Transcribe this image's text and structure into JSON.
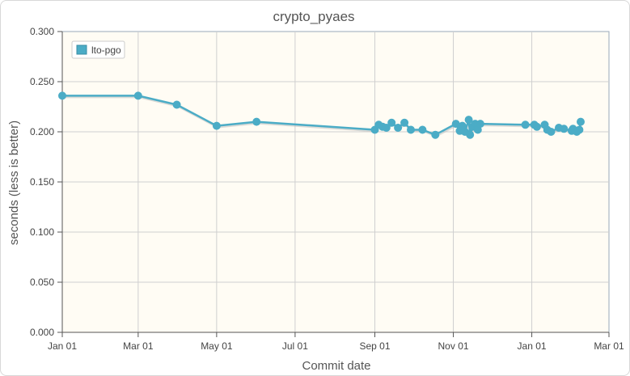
{
  "chart_data": {
    "type": "line",
    "title": "crypto_pyaes",
    "xlabel": "Commit date",
    "ylabel": "seconds (less is better)",
    "x_ticks": [
      "Jan 01",
      "Mar 01",
      "May 01",
      "Jul 01",
      "Sep 01",
      "Nov 01",
      "Jan 01",
      "Mar 01"
    ],
    "y_ticks": [
      "0.000",
      "0.050",
      "0.100",
      "0.150",
      "0.200",
      "0.250",
      "0.300"
    ],
    "ylim": [
      0,
      0.3
    ],
    "grid": true,
    "legend_position": "top-left",
    "series": [
      {
        "name": "lto-pgo",
        "color": "#4bacc6",
        "points": [
          {
            "x": "2019-01-01",
            "y": 0.236
          },
          {
            "x": "2019-03-01",
            "y": 0.236
          },
          {
            "x": "2019-03-31",
            "y": 0.227
          },
          {
            "x": "2019-05-01",
            "y": 0.206
          },
          {
            "x": "2019-06-01",
            "y": 0.21
          },
          {
            "x": "2019-09-01",
            "y": 0.202
          },
          {
            "x": "2019-09-04",
            "y": 0.207
          },
          {
            "x": "2019-09-07",
            "y": 0.205
          },
          {
            "x": "2019-09-10",
            "y": 0.204
          },
          {
            "x": "2019-09-14",
            "y": 0.209
          },
          {
            "x": "2019-09-19",
            "y": 0.204
          },
          {
            "x": "2019-09-24",
            "y": 0.209
          },
          {
            "x": "2019-09-29",
            "y": 0.202
          },
          {
            "x": "2019-10-08",
            "y": 0.202
          },
          {
            "x": "2019-10-18",
            "y": 0.197
          },
          {
            "x": "2019-11-03",
            "y": 0.208
          },
          {
            "x": "2019-11-06",
            "y": 0.201
          },
          {
            "x": "2019-11-08",
            "y": 0.206
          },
          {
            "x": "2019-11-10",
            "y": 0.2
          },
          {
            "x": "2019-11-13",
            "y": 0.212
          },
          {
            "x": "2019-11-14",
            "y": 0.197
          },
          {
            "x": "2019-11-16",
            "y": 0.205
          },
          {
            "x": "2019-11-18",
            "y": 0.208
          },
          {
            "x": "2019-11-20",
            "y": 0.202
          },
          {
            "x": "2019-11-22",
            "y": 0.208
          },
          {
            "x": "2019-12-27",
            "y": 0.207
          },
          {
            "x": "2020-01-03",
            "y": 0.207
          },
          {
            "x": "2020-01-05",
            "y": 0.205
          },
          {
            "x": "2020-01-11",
            "y": 0.207
          },
          {
            "x": "2020-01-13",
            "y": 0.202
          },
          {
            "x": "2020-01-16",
            "y": 0.2
          },
          {
            "x": "2020-01-22",
            "y": 0.204
          },
          {
            "x": "2020-01-26",
            "y": 0.203
          },
          {
            "x": "2020-02-01",
            "y": 0.201
          },
          {
            "x": "2020-02-02",
            "y": 0.203
          },
          {
            "x": "2020-02-05",
            "y": 0.2
          },
          {
            "x": "2020-02-07",
            "y": 0.202
          },
          {
            "x": "2020-02-08",
            "y": 0.21
          }
        ]
      }
    ]
  }
}
